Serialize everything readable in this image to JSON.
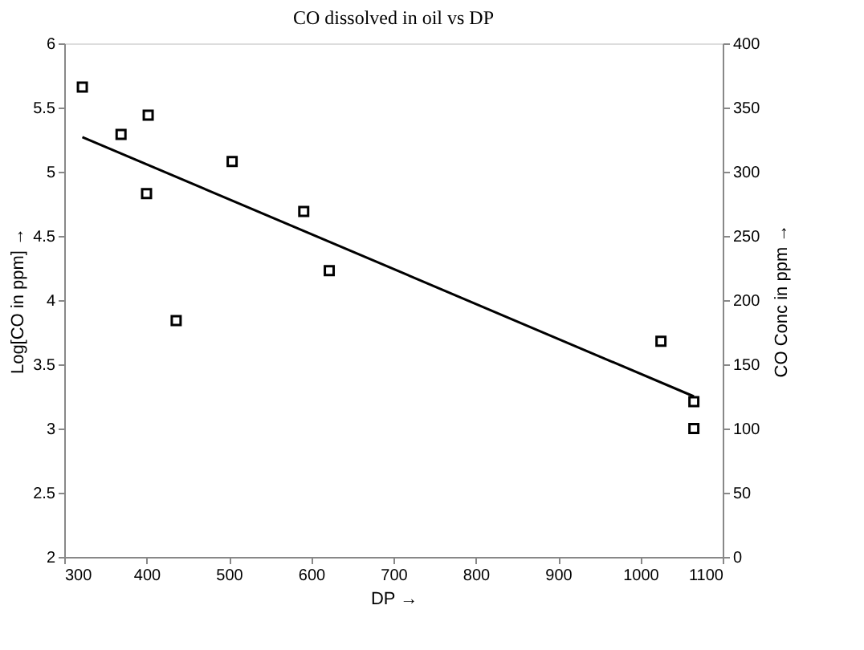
{
  "chart_data": {
    "type": "scatter",
    "title": "CO dissolved in oil vs DP",
    "xlabel": "DP →",
    "ylabel": "Log[CO in ppm] →",
    "y2label": "CO Conc in ppm →",
    "xlim": [
      300,
      1100
    ],
    "xticks": [
      300,
      400,
      500,
      600,
      700,
      800,
      900,
      1000,
      1100
    ],
    "ylim": [
      2,
      6
    ],
    "yticks": [
      2,
      2.5,
      3,
      3.5,
      4,
      4.5,
      5,
      5.5,
      6
    ],
    "y2lim": [
      0,
      400
    ],
    "y2ticks": [
      0,
      50,
      100,
      150,
      200,
      250,
      300,
      350,
      400
    ],
    "marker": "square",
    "grid": false,
    "series": [
      {
        "color": "#000000",
        "x": [
          322,
          369,
          402,
          400,
          436,
          504,
          591,
          622,
          1025,
          1065,
          1065
        ],
        "values": [
          5.66,
          5.29,
          5.44,
          4.83,
          3.84,
          5.08,
          4.69,
          4.23,
          3.68,
          3.21,
          3.0
        ]
      },
      {
        "type": "line",
        "marker": "none",
        "color": "#000000",
        "x": [
          322,
          1065
        ],
        "values": [
          5.27,
          3.25
        ]
      }
    ]
  }
}
